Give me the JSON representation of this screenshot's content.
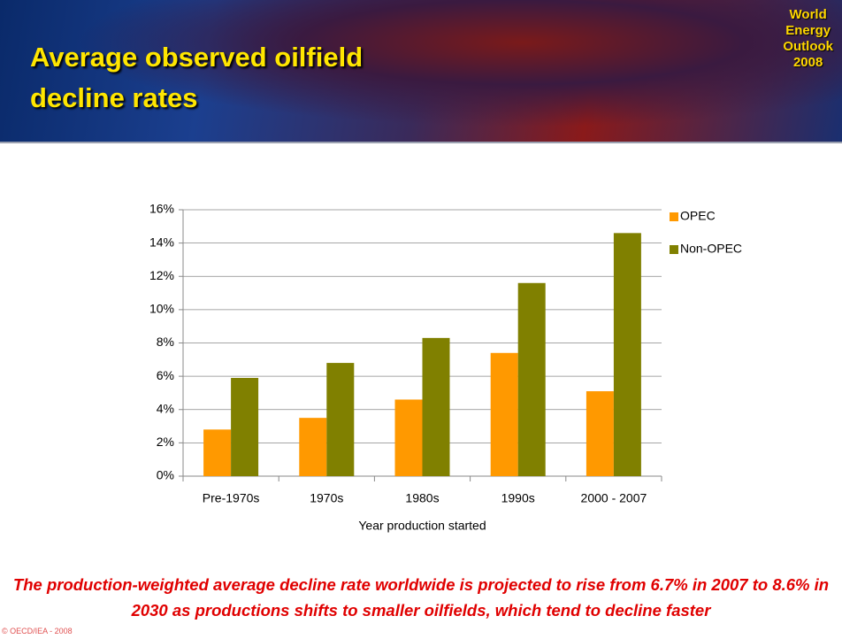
{
  "chart_data": {
    "type": "bar",
    "title": "Average observed oilfield decline rates",
    "x_label": "Year production started",
    "categories": [
      "Pre-1970s",
      "1970s",
      "1980s",
      "1990s",
      "2000 - 2007"
    ],
    "series": [
      {
        "name": "OPEC",
        "color": "#ff9900",
        "values": [
          2.8,
          3.5,
          4.6,
          7.4,
          5.1
        ]
      },
      {
        "name": "Non-OPEC",
        "color": "#808000",
        "values": [
          5.9,
          6.8,
          8.3,
          11.6,
          14.6
        ]
      }
    ],
    "ylim": [
      0,
      16
    ],
    "yticks": [
      {
        "value": 0,
        "label": "0%"
      },
      {
        "value": 2,
        "label": "2%"
      },
      {
        "value": 4,
        "label": "4%"
      },
      {
        "value": 6,
        "label": "6%"
      },
      {
        "value": 8,
        "label": "8%"
      },
      {
        "value": 10,
        "label": "10%"
      },
      {
        "value": 12,
        "label": "12%"
      },
      {
        "value": 14,
        "label": "14%"
      },
      {
        "value": 16,
        "label": "16%"
      }
    ],
    "grid": true,
    "legend": "right"
  },
  "slide": {
    "logo": [
      "World",
      "Energy",
      "Outlook",
      "2008"
    ],
    "footer": "The production-weighted average decline rate worldwide is projected to rise from 6.7% in 2007 to 8.6% in 2030 as productions shifts to smaller oilfields, which tend to decline faster",
    "copyright": "© OECD/IEA - 2008"
  }
}
